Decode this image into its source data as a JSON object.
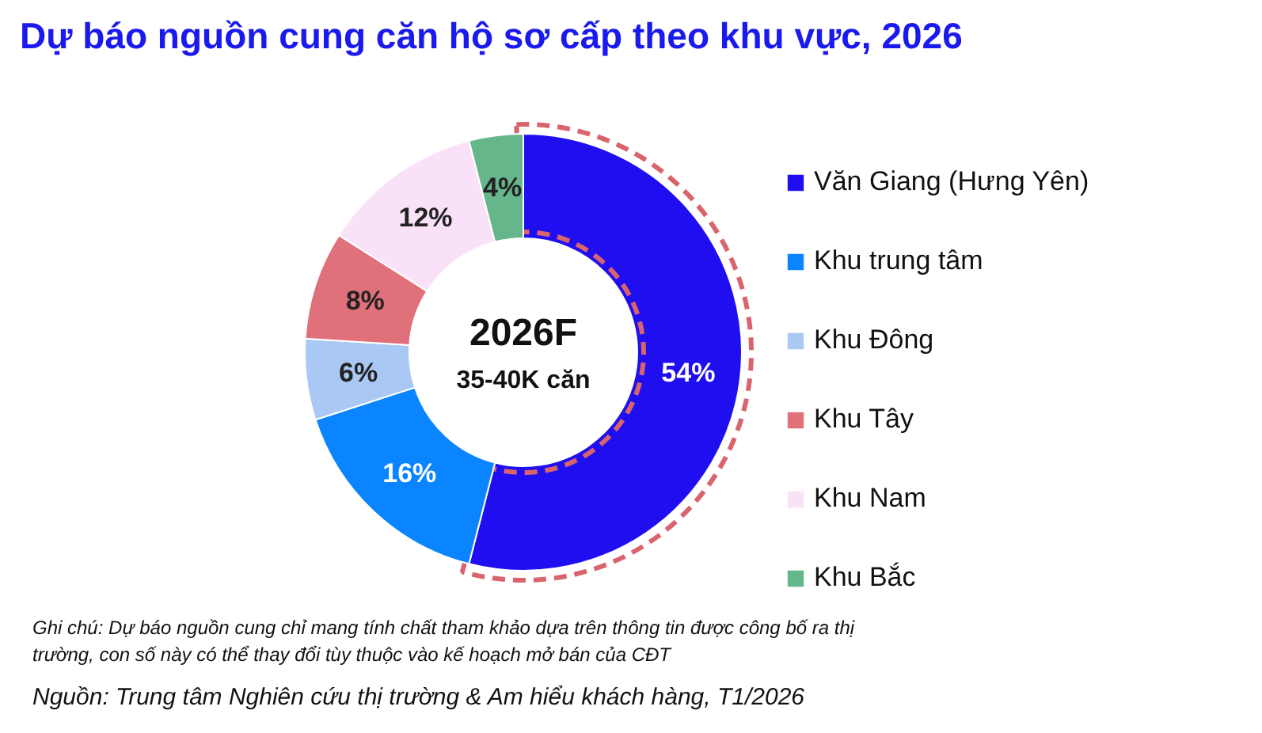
{
  "chart_data": {
    "type": "donut",
    "title": "Dự báo nguồn cung căn hộ sơ cấp theo khu vực, 2026",
    "categories": [
      "Văn Giang (Hưng Yên)",
      "Khu trung tâm",
      "Khu Đông",
      "Khu Tây",
      "Khu Nam",
      "Khu Bắc"
    ],
    "values": [
      54,
      16,
      6,
      8,
      12,
      4
    ],
    "value_labels": [
      "54%",
      "16%",
      "6%",
      "8%",
      "12%",
      "4%"
    ],
    "colors": [
      "#1f0ff0",
      "#0a84ff",
      "#a9c8f3",
      "#e0707a",
      "#f9e1f8",
      "#66b68b"
    ],
    "legend": "right",
    "annotations": [
      "2026F",
      "35-40K căn",
      "Ghi chú: Dự báo nguồn cung chỉ mang tính chất tham khảo dựa trên thông tin được công bố ra thị trường, con số này có thể thay đổi tùy thuộc vào kế hoạch mở bán của CĐT",
      "Nguồn: Trung tâm Nghiên cứu thị trường & Am hiểu khách hàng, T1/2026"
    ]
  }
}
